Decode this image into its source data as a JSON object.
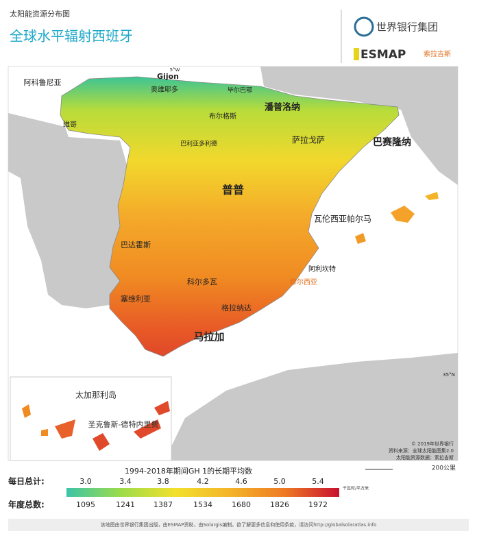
{
  "header": {
    "subtitle": "太阳能资源分布图",
    "title": "全球水平辐射西班牙",
    "org": "世界银行集团",
    "partner": "ESMAP",
    "partner2": "索拉吉斯"
  },
  "map": {
    "labels": [
      "Gijon",
      "阿科鲁尼亚",
      "奥维耶多",
      "毕尔巴鄂",
      "潘普洛纳",
      "维哥",
      "布尔格斯",
      "萨拉戈萨",
      "巴赛隆纳",
      "巴利亚多利德",
      "普普",
      "瓦伦西亚帕尔马",
      "巴达霍斯",
      "阿利坎特",
      "穆尔西亚",
      "科尔多瓦",
      "塞维利亚",
      "格拉纳达",
      "马拉加",
      "5°W",
      "35°N"
    ],
    "inset": {
      "title": "太加那利岛",
      "label": "圣克鲁斯-德特内里费"
    },
    "credits": [
      "© 2019年世界银行",
      "资料来源：全球太阳能图集2.0",
      "太阳能资源数据：索拉吉斯"
    ],
    "scale": "200公里"
  },
  "legend": {
    "title": "1994-2018年期间GH 1的长期平均数",
    "daily_label": "每日总计:",
    "daily": [
      "3.0",
      "3.4",
      "3.8",
      "4.2",
      "4.6",
      "5.0",
      "5.4"
    ],
    "unit": "千瓦时/平方米",
    "annual_label": "年度总数:",
    "annual": [
      "1095",
      "1241",
      "1387",
      "1534",
      "1680",
      "1826",
      "1972"
    ]
  },
  "footer": "该地图由世界银行集团出版，由ESMAP资助，由Solargis编制。欲了解更多信息和使用条款，请访问http://globalsolaratlas.info"
}
